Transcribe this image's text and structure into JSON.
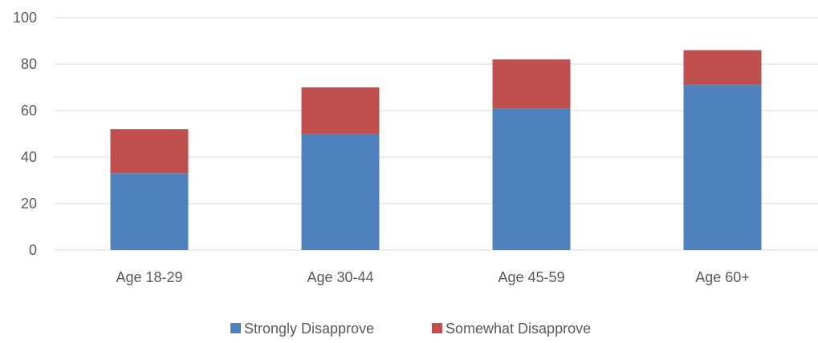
{
  "chart_data": {
    "type": "bar",
    "stacked": true,
    "categories": [
      "Age 18-29",
      "Age 30-44",
      "Age 45-59",
      "Age 60+"
    ],
    "series": [
      {
        "name": "Strongly Disapprove",
        "values": [
          33,
          50,
          61,
          71
        ],
        "color": "#4F81BD"
      },
      {
        "name": "Somewhat Disapprove",
        "values": [
          19,
          20,
          21,
          15
        ],
        "color": "#C0504D"
      }
    ],
    "ylim": [
      0,
      100
    ],
    "yticks": [
      0,
      20,
      40,
      60,
      80,
      100
    ],
    "grid": true,
    "legend_position": "bottom",
    "title": "",
    "xlabel": "",
    "ylabel": ""
  }
}
